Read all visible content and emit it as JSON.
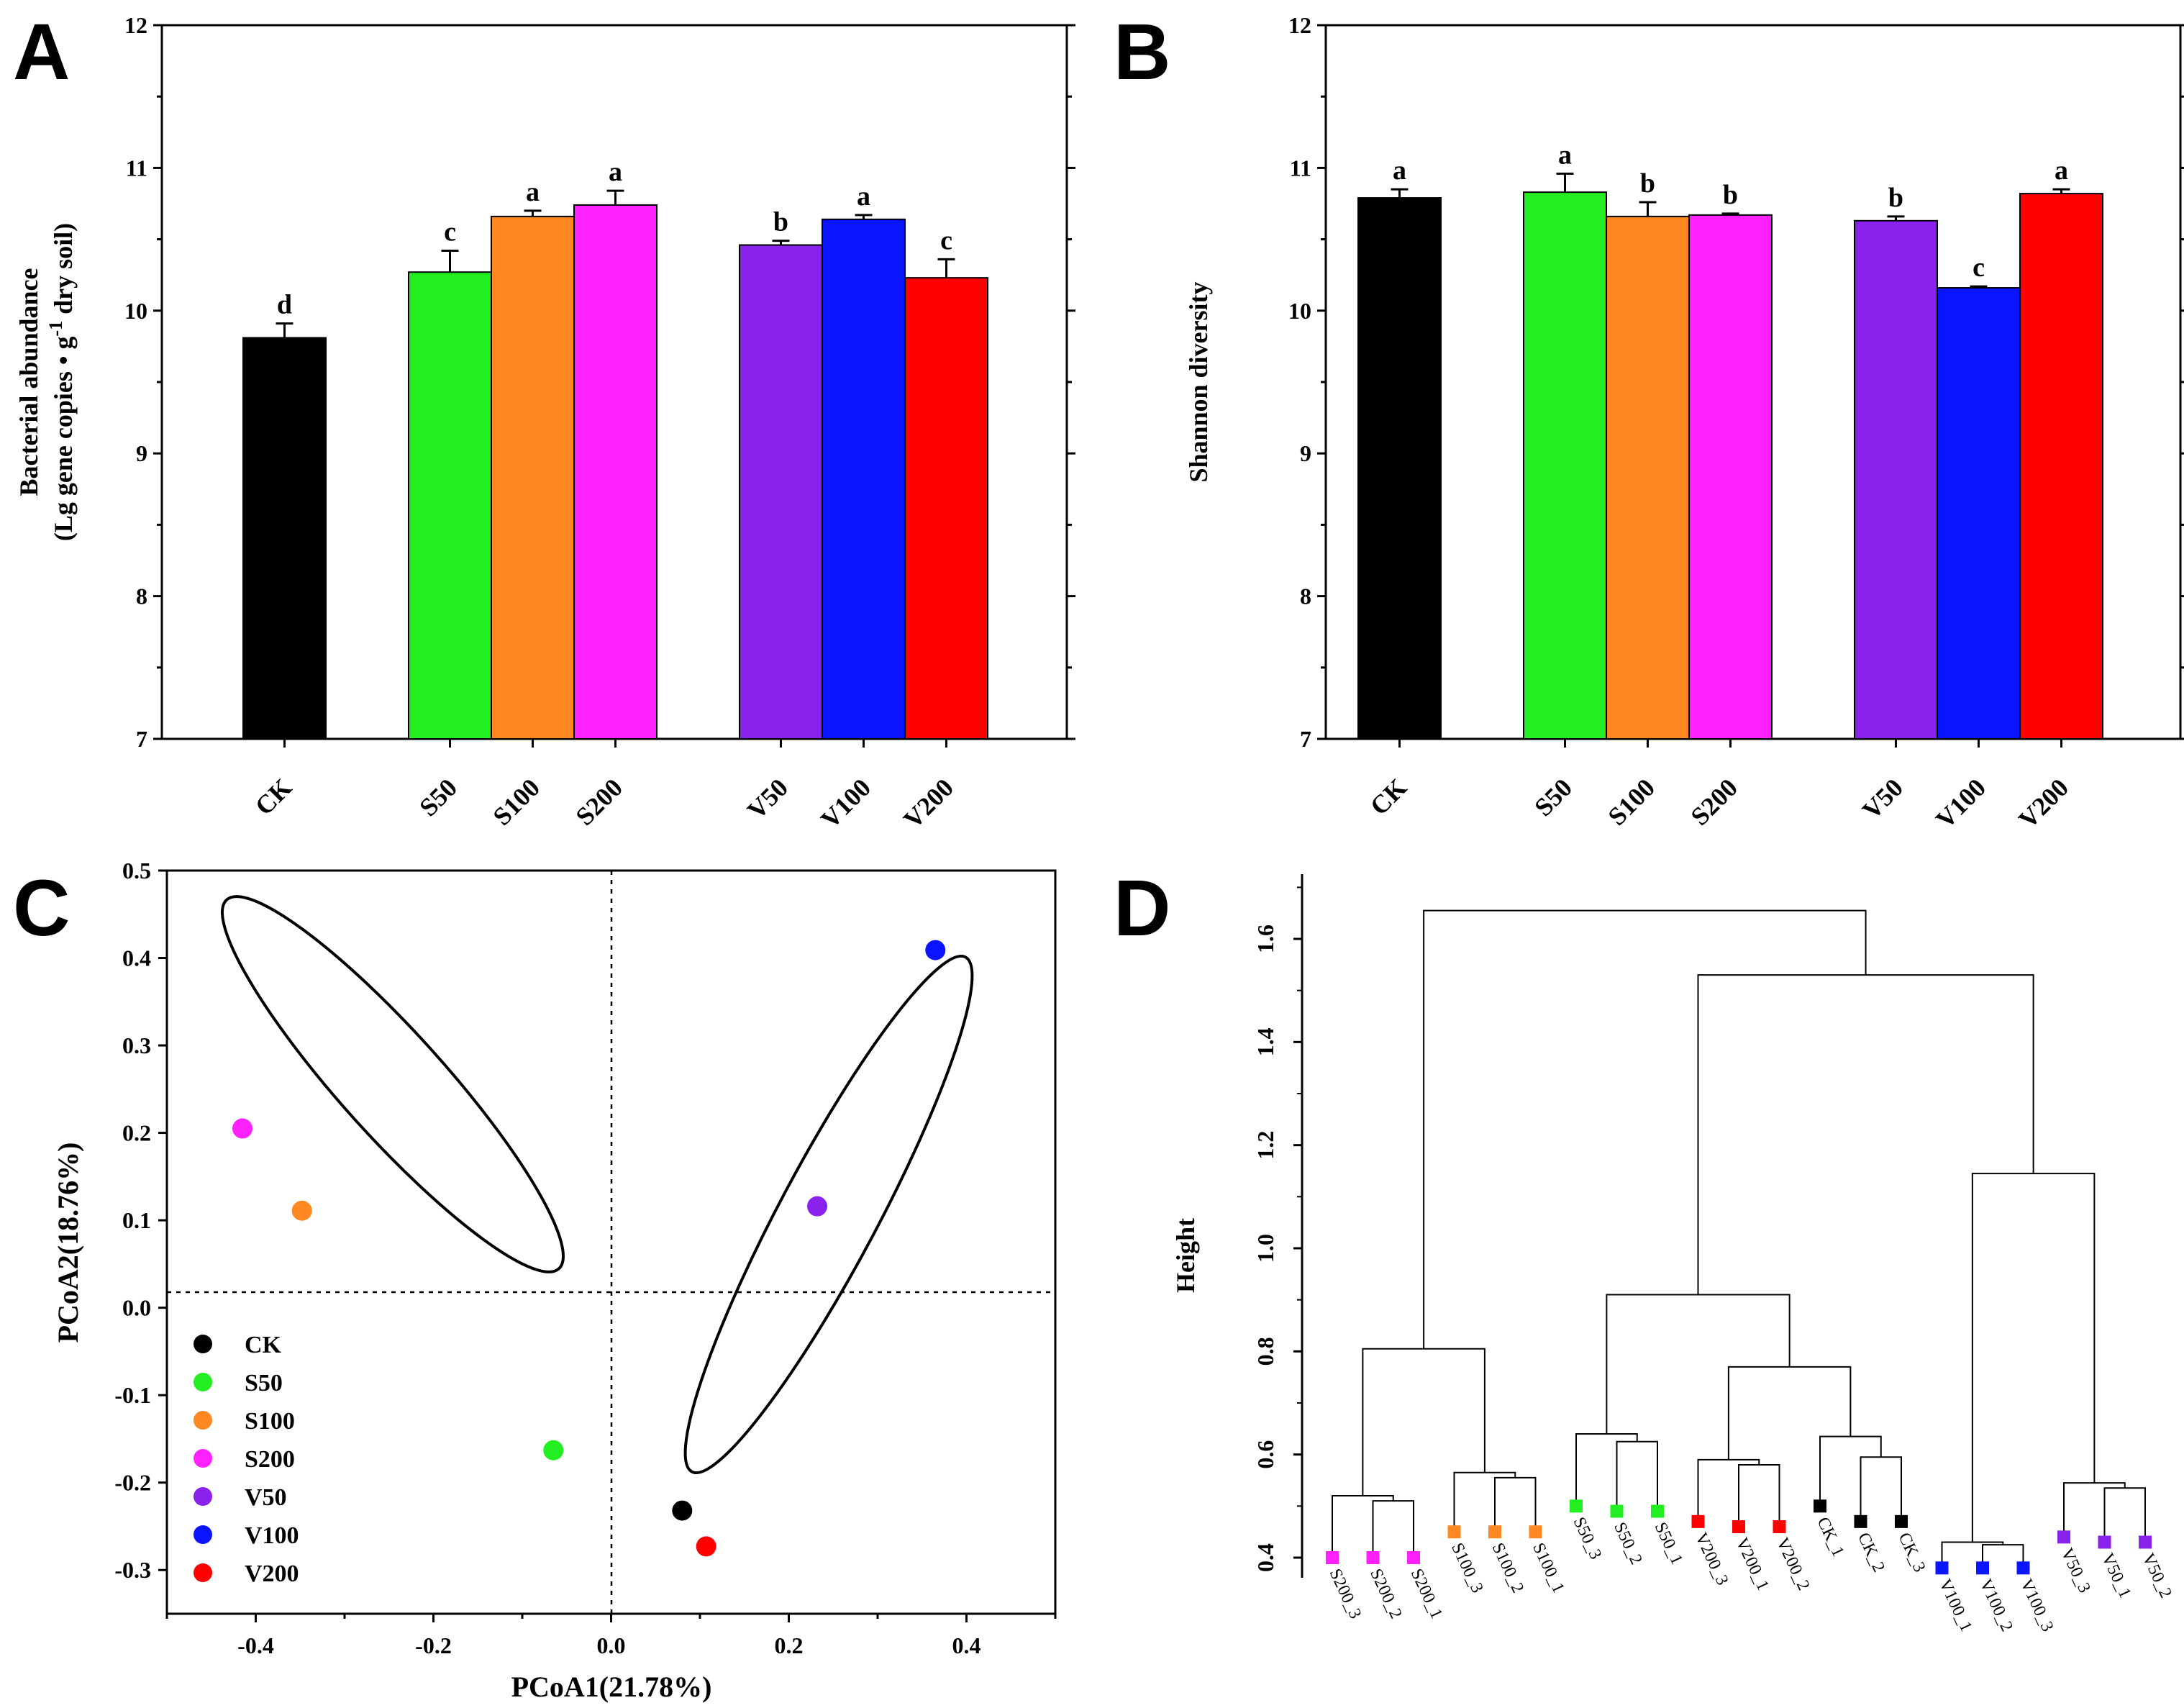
{
  "colors": {
    "CK": "#000000",
    "S50": "#22ee22",
    "S100": "#ff8822",
    "S200": "#ff22ff",
    "V50": "#8a22ee",
    "V100": "#0a14ff",
    "V200": "#ff0000"
  },
  "panels": {
    "A": "A",
    "B": "B",
    "C": "C",
    "D": "D"
  },
  "chart_data": [
    {
      "panel": "A",
      "type": "bar",
      "title": "",
      "ylabel_line1": "Bacterial abundance",
      "ylabel_line2_prefix": "(Lg gene copies • g",
      "ylabel_sup": "-1",
      "ylabel_line2_suffix": " dry soil)",
      "xlabel": "",
      "ylim": [
        7,
        12
      ],
      "yticks": [
        7,
        8,
        9,
        10,
        11,
        12
      ],
      "categories": [
        "CK",
        "S50",
        "S100",
        "S200",
        "V50",
        "V100",
        "V200"
      ],
      "values": [
        9.81,
        10.27,
        10.66,
        10.74,
        10.46,
        10.64,
        10.23
      ],
      "errors": [
        0.1,
        0.15,
        0.04,
        0.1,
        0.03,
        0.03,
        0.13
      ],
      "letters": [
        "d",
        "c",
        "a",
        "a",
        "b",
        "a",
        "c"
      ]
    },
    {
      "panel": "B",
      "type": "bar",
      "title": "",
      "ylabel": "Shannon diversity",
      "xlabel": "",
      "ylim": [
        7,
        12
      ],
      "yticks": [
        7,
        8,
        9,
        10,
        11,
        12
      ],
      "categories": [
        "CK",
        "S50",
        "S100",
        "S200",
        "V50",
        "V100",
        "V200"
      ],
      "values": [
        10.79,
        10.83,
        10.66,
        10.67,
        10.63,
        10.16,
        10.82
      ],
      "errors": [
        0.06,
        0.13,
        0.1,
        0.01,
        0.03,
        0.01,
        0.03
      ],
      "letters": [
        "a",
        "a",
        "b",
        "b",
        "b",
        "c",
        "a"
      ]
    },
    {
      "panel": "C",
      "type": "scatter",
      "title": "",
      "xlabel": "PCoA1(21.78%)",
      "ylabel": "PCoA2(18.76%)",
      "xlim": [
        -0.5,
        0.5
      ],
      "ylim": [
        -0.35,
        0.5
      ],
      "xticks": [
        "-0.4",
        "-0.2",
        "0.0",
        "0.2",
        "0.4"
      ],
      "yticks": [
        "-0.3",
        "-0.2",
        "-0.1",
        "0.0",
        "0.1",
        "0.2",
        "0.3",
        "0.4",
        "0.5"
      ],
      "legend_position": "bottom-left",
      "points": [
        {
          "name": "CK",
          "x": 0.08,
          "y": -0.232
        },
        {
          "name": "S50",
          "x": -0.065,
          "y": -0.163
        },
        {
          "name": "S100",
          "x": -0.348,
          "y": 0.111
        },
        {
          "name": "S200",
          "x": -0.415,
          "y": 0.205
        },
        {
          "name": "V50",
          "x": 0.232,
          "y": 0.116
        },
        {
          "name": "V100",
          "x": 0.365,
          "y": 0.409
        },
        {
          "name": "V200",
          "x": 0.107,
          "y": -0.273
        }
      ]
    },
    {
      "panel": "D",
      "type": "dendrogram",
      "title": "",
      "ylabel": "Height",
      "ylim": [
        0.4,
        1.7
      ],
      "yticks": [
        "0.4",
        "0.6",
        "0.8",
        "1.0",
        "1.2",
        "1.4",
        "1.6"
      ],
      "leaves": [
        {
          "label": "S200_3",
          "group": "S200"
        },
        {
          "label": "S200_2",
          "group": "S200"
        },
        {
          "label": "S200_1",
          "group": "S200"
        },
        {
          "label": "S100_3",
          "group": "S100"
        },
        {
          "label": "S100_2",
          "group": "S100"
        },
        {
          "label": "S100_1",
          "group": "S100"
        },
        {
          "label": "S50_3",
          "group": "S50"
        },
        {
          "label": "S50_2",
          "group": "S50"
        },
        {
          "label": "S50_1",
          "group": "S50"
        },
        {
          "label": "V200_3",
          "group": "V200"
        },
        {
          "label": "V200_1",
          "group": "V200"
        },
        {
          "label": "V200_2",
          "group": "V200"
        },
        {
          "label": "CK_1",
          "group": "CK"
        },
        {
          "label": "CK_2",
          "group": "CK"
        },
        {
          "label": "CK_3",
          "group": "CK"
        },
        {
          "label": "V100_1",
          "group": "V100"
        },
        {
          "label": "V100_2",
          "group": "V100"
        },
        {
          "label": "V100_3",
          "group": "V100"
        },
        {
          "label": "V50_3",
          "group": "V50"
        },
        {
          "label": "V50_1",
          "group": "V50"
        },
        {
          "label": "V50_2",
          "group": "V50"
        }
      ],
      "leaf_heights": [
        0.4,
        0.4,
        0.4,
        0.45,
        0.45,
        0.45,
        0.5,
        0.49,
        0.49,
        0.47,
        0.46,
        0.46,
        0.5,
        0.47,
        0.47,
        0.38,
        0.38,
        0.38,
        0.44,
        0.43,
        0.43
      ],
      "merges": [
        [
          1,
          2,
          0.51
        ],
        [
          0,
          -1,
          0.52
        ],
        [
          4,
          5,
          0.555
        ],
        [
          3,
          -3,
          0.565
        ],
        [
          7,
          8,
          0.625
        ],
        [
          6,
          -5,
          0.64
        ],
        [
          10,
          11,
          0.58
        ],
        [
          9,
          -7,
          0.59
        ],
        [
          13,
          14,
          0.595
        ],
        [
          12,
          -9,
          0.635
        ],
        [
          16,
          17,
          0.425
        ],
        [
          15,
          -11,
          0.43
        ],
        [
          19,
          20,
          0.535
        ],
        [
          18,
          -13,
          0.545
        ],
        [
          -2,
          -4,
          0.805
        ],
        [
          -8,
          -10,
          0.77
        ],
        [
          -6,
          -16,
          0.91
        ],
        [
          -12,
          -14,
          1.145
        ],
        [
          -17,
          -18,
          1.53
        ],
        [
          -15,
          -19,
          1.655
        ]
      ]
    }
  ]
}
